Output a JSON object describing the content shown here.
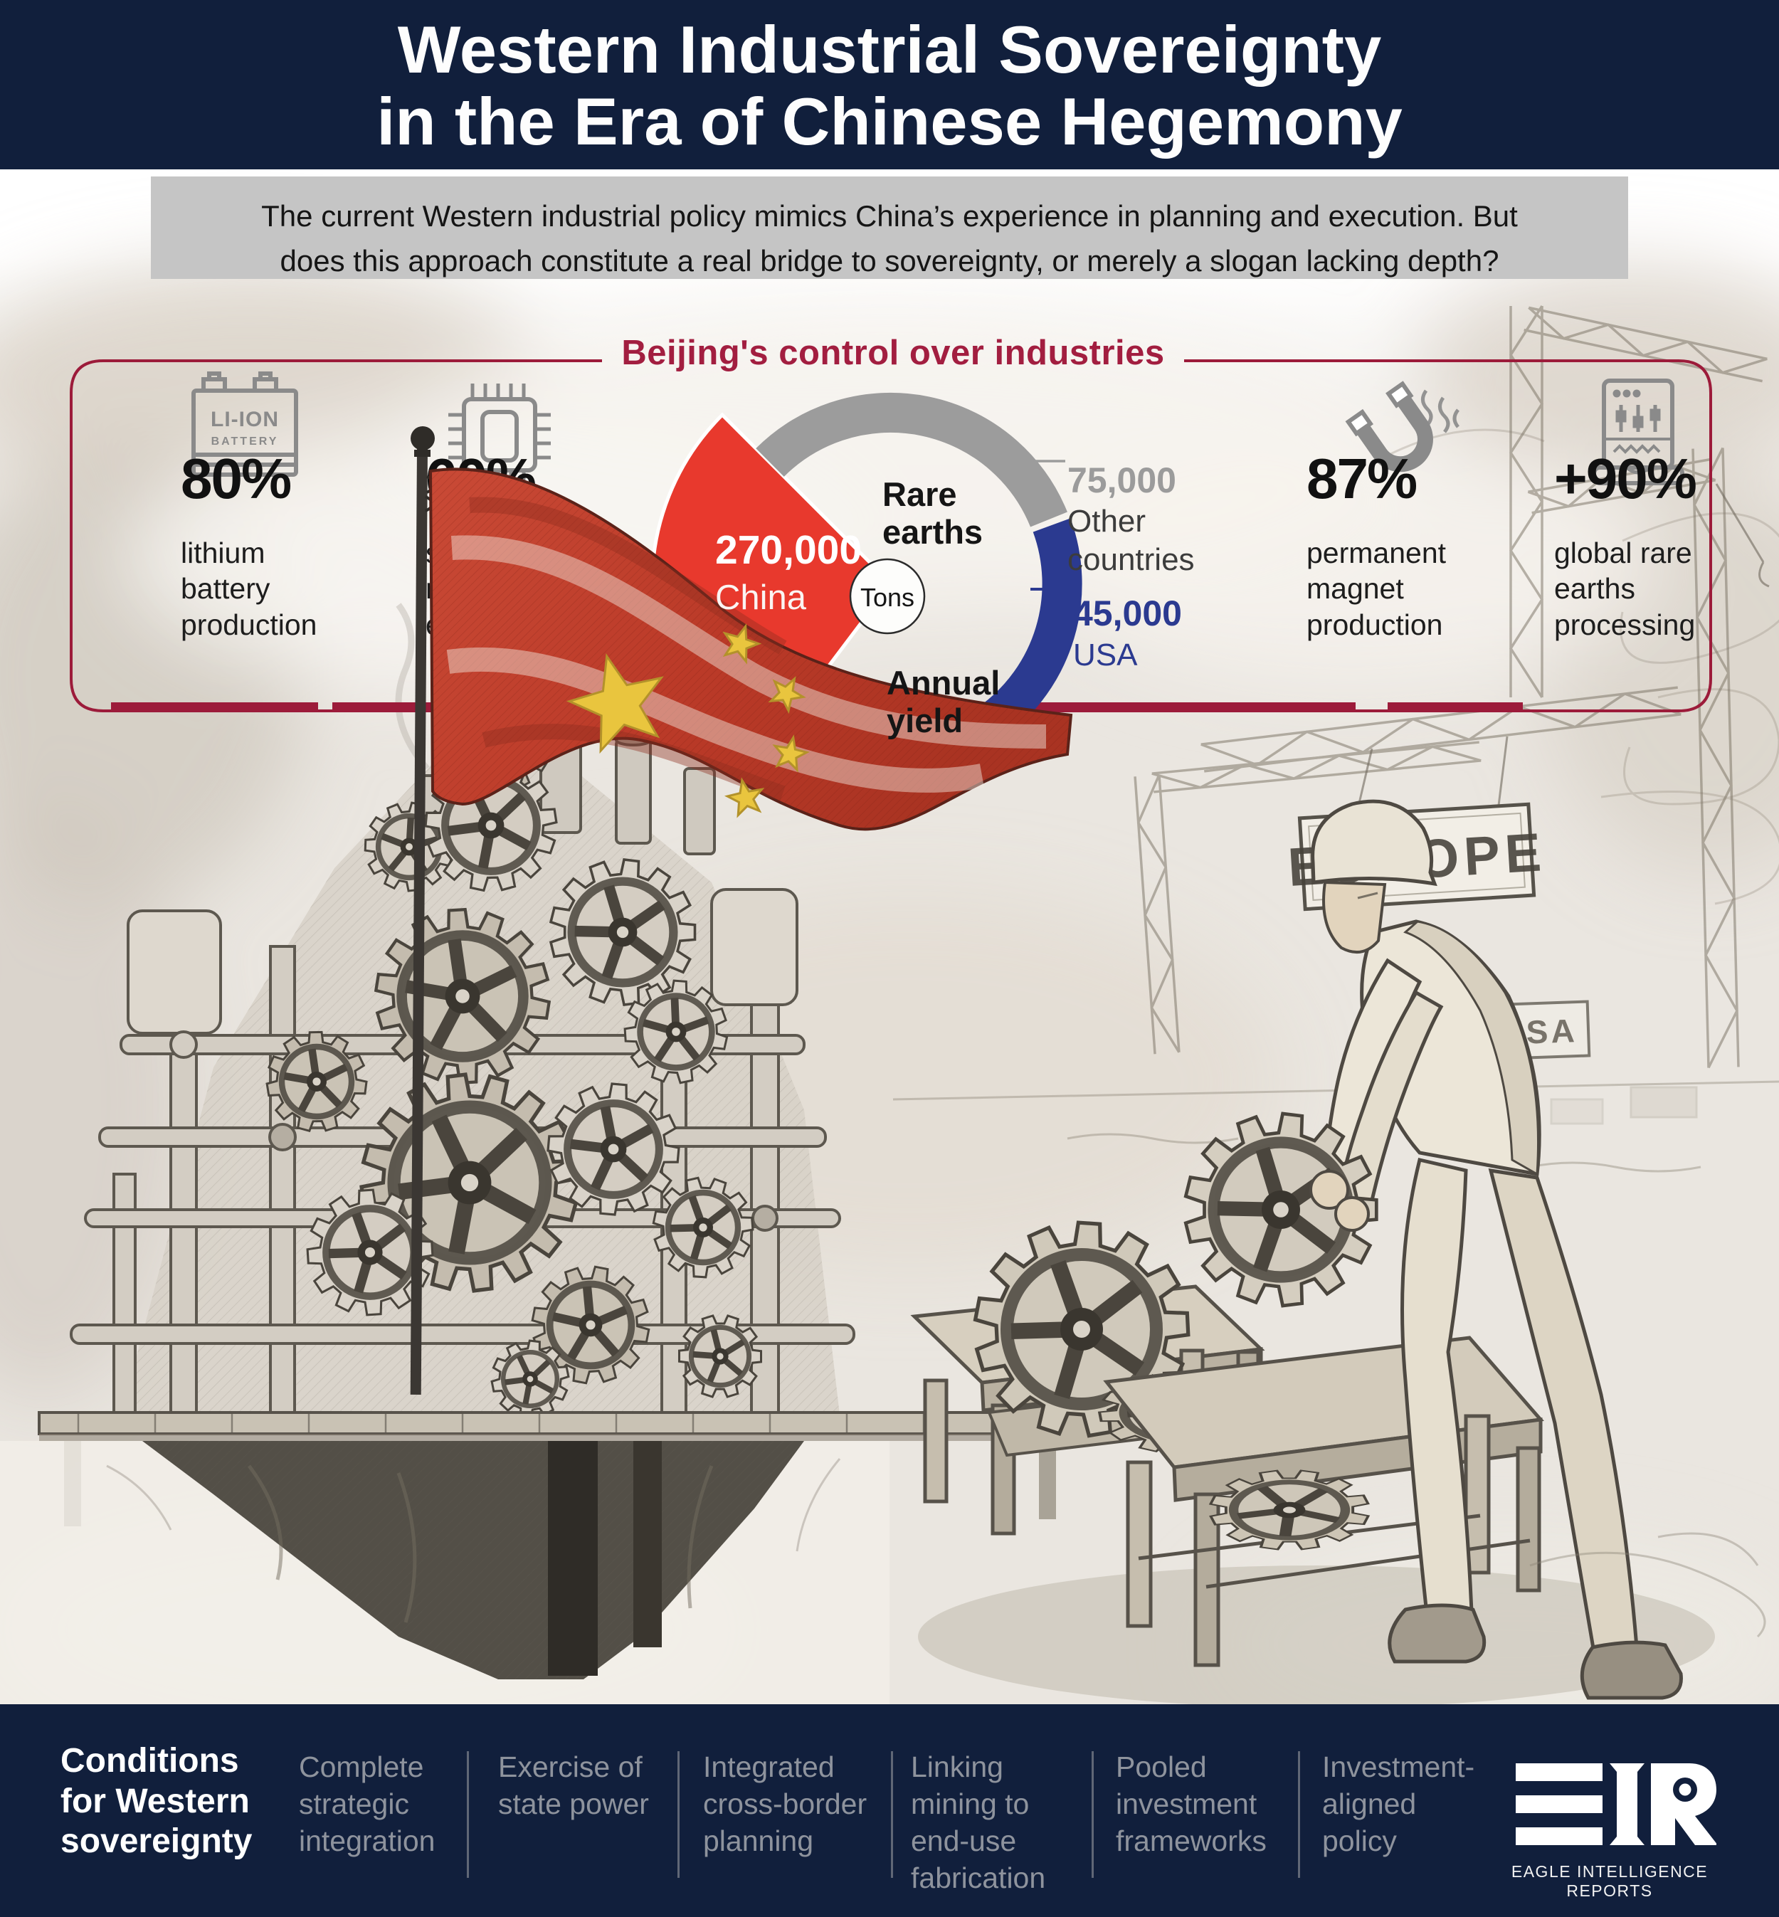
{
  "header": {
    "title_line1": "Western Industrial Sovereignty",
    "title_line2": "in the Era of Chinese Hegemony"
  },
  "intro": {
    "text": "The current Western industrial policy mimics China’s experience in planning and execution. But\ndoes this approach constitute a real bridge to sovereignty, or merely a slogan lacking depth?"
  },
  "panel": {
    "title": "Beijing's control over industries",
    "stats": [
      {
        "icon": "li-ion-battery-icon",
        "icon_label_line1": "LI-ION",
        "icon_label_line2": "BATTERY",
        "value": "80%",
        "label": "lithium battery production"
      },
      {
        "icon": "microchip-icon",
        "value": "60%",
        "label": "semiconductor manufacturing equipment"
      },
      {
        "icon": "magnet-icon",
        "value": "87%",
        "label": "permanent magnet production"
      },
      {
        "icon": "rare-earth-processing-icon",
        "value": "+90%",
        "label": "global rare earths processing"
      }
    ]
  },
  "chart_data": {
    "type": "pie",
    "title": "Rare earths Annual yield",
    "unit": "Tons",
    "center_label_top": "Rare earths",
    "center_label_bottom": "Annual yield",
    "center_unit": "Tons",
    "legend_position": "callouts",
    "segments": [
      {
        "label": "China",
        "value": 270000,
        "display": "270,000",
        "color": "#e8392d"
      },
      {
        "label": "Other countries",
        "value": 75000,
        "display": "75,000",
        "color": "#9c9c9c"
      },
      {
        "label": "USA",
        "value": 45000,
        "display": "45,000",
        "color": "#2b3a90"
      }
    ]
  },
  "illustration": {
    "europe_sign": "EUROPE",
    "usa_sign": "USA"
  },
  "footer": {
    "heading": "Conditions for Western sovereignty",
    "items": [
      "Complete strategic integration",
      "Exercise of state power",
      "Integrated cross-border planning",
      "Linking mining to end-use fabrication",
      "Pooled investment frameworks",
      "Investment-aligned policy"
    ],
    "brand": "EAGLE INTELLIGENCE REPORTS"
  },
  "colors": {
    "navy": "#111f3c",
    "crimson": "#9c1b3a",
    "red": "#e8392d",
    "blue": "#2b3a90",
    "gray_arc": "#9c9c9c",
    "intro_bg": "#c5c5c5"
  }
}
